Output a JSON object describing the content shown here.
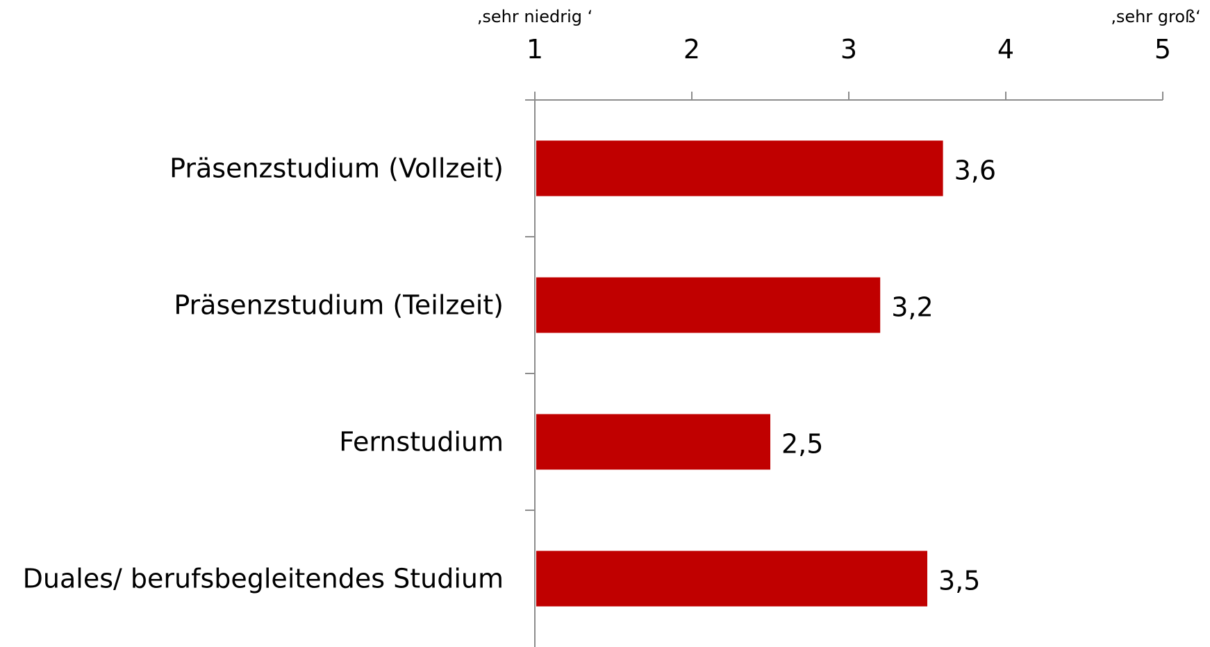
{
  "chart_data": {
    "type": "bar",
    "orientation": "horizontal",
    "categories": [
      "Präsenzstudium (Vollzeit)",
      "Präsenzstudium (Teilzeit)",
      "Fernstudium",
      "Duales/ berufsbegleitendes Studium"
    ],
    "values": [
      3.6,
      3.2,
      2.5,
      3.5
    ],
    "value_labels": [
      "3,6",
      "3,2",
      "2,5",
      "3,5"
    ],
    "title": "",
    "xlabel": "",
    "ylabel": "",
    "xlim": [
      1,
      5
    ],
    "x_ticks": [
      1,
      2,
      3,
      4,
      5
    ],
    "x_tick_labels": [
      "1",
      "2",
      "3",
      "4",
      "5"
    ],
    "scale_min_label": "‚sehr niedrig ‘",
    "scale_max_label": "‚sehr groß‘",
    "axis_position": "top",
    "grid": false,
    "legend": "none",
    "bar_color": "#c00000",
    "axis_color": "#8c8c8c"
  }
}
